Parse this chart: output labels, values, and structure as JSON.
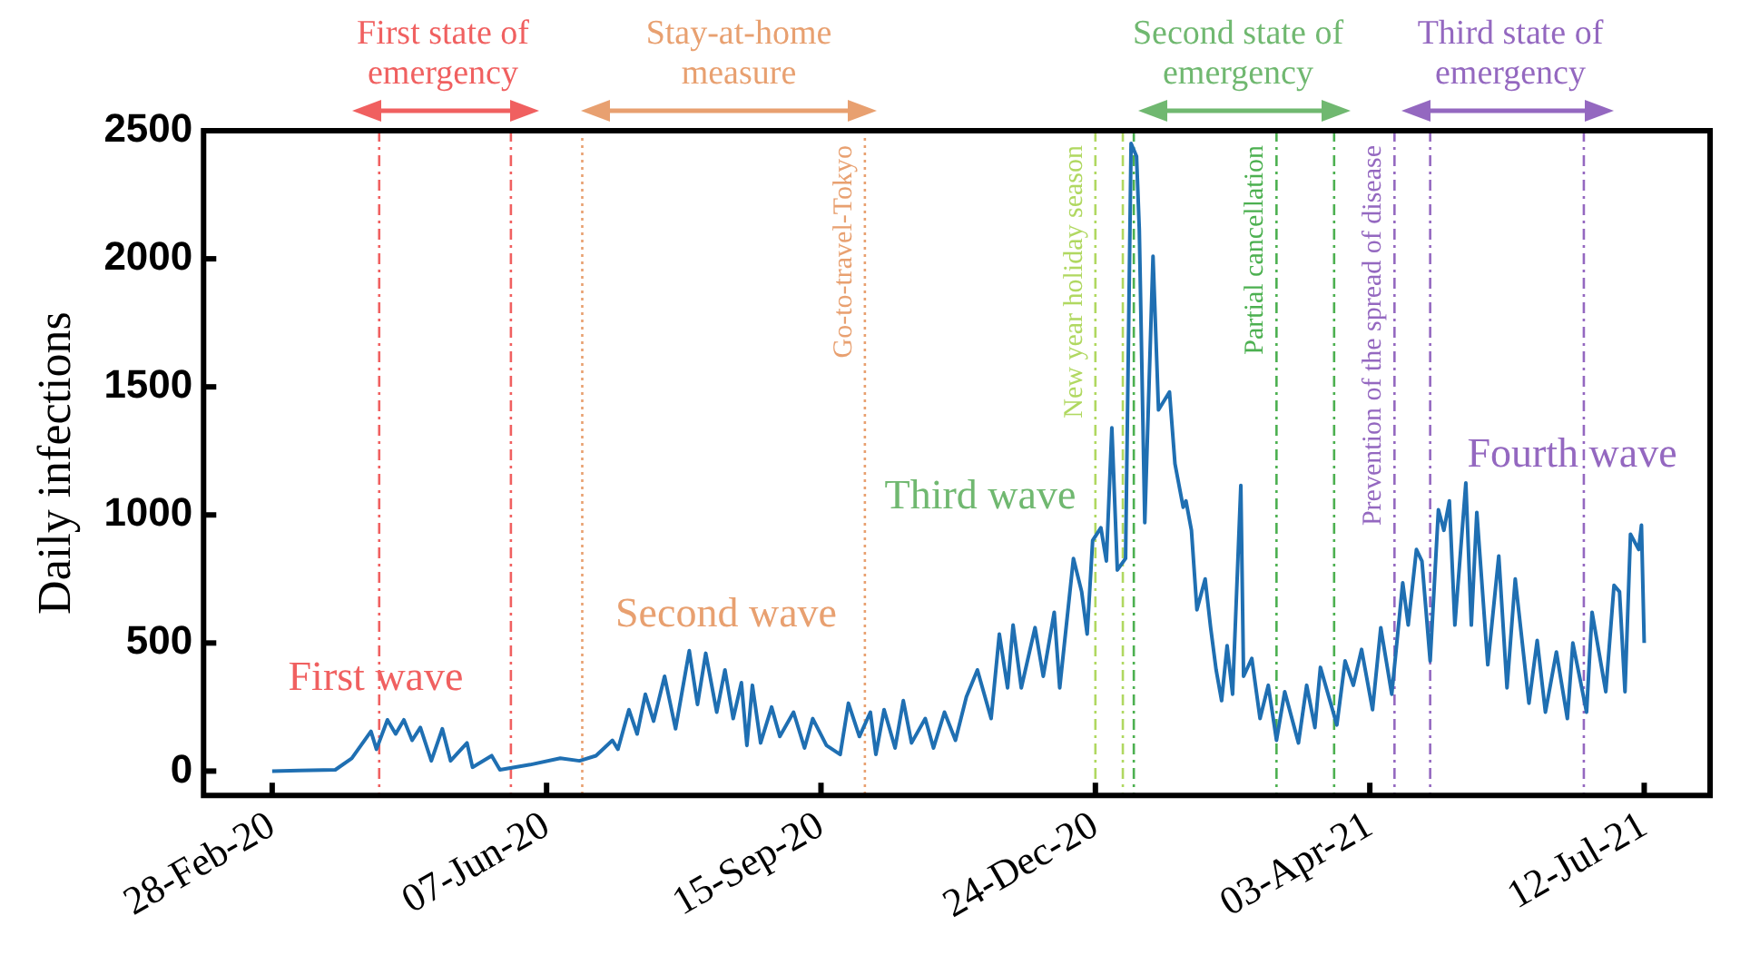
{
  "chart_data": {
    "type": "line",
    "ylabel": "Daily infections",
    "x": [
      "2020-02-28",
      "2020-03-09",
      "2020-03-22",
      "2020-03-28",
      "2020-04-04",
      "2020-04-06",
      "2020-04-10",
      "2020-04-13",
      "2020-04-16",
      "2020-04-19",
      "2020-04-22",
      "2020-04-26",
      "2020-04-30",
      "2020-05-03",
      "2020-05-09",
      "2020-05-11",
      "2020-05-18",
      "2020-05-21",
      "2020-06-01",
      "2020-06-12",
      "2020-06-19",
      "2020-06-25",
      "2020-07-01",
      "2020-07-03",
      "2020-07-07",
      "2020-07-10",
      "2020-07-13",
      "2020-07-16",
      "2020-07-20",
      "2020-07-24",
      "2020-07-29",
      "2020-08-01",
      "2020-08-04",
      "2020-08-08",
      "2020-08-11",
      "2020-08-14",
      "2020-08-17",
      "2020-08-19",
      "2020-08-21",
      "2020-08-24",
      "2020-08-28",
      "2020-08-31",
      "2020-09-05",
      "2020-09-09",
      "2020-09-12",
      "2020-09-17",
      "2020-09-22",
      "2020-09-25",
      "2020-09-29",
      "2020-10-03",
      "2020-10-05",
      "2020-10-08",
      "2020-10-12",
      "2020-10-15",
      "2020-10-18",
      "2020-10-23",
      "2020-10-26",
      "2020-10-30",
      "2020-11-03",
      "2020-11-07",
      "2020-11-11",
      "2020-11-16",
      "2020-11-19",
      "2020-11-22",
      "2020-11-24",
      "2020-11-27",
      "2020-12-02",
      "2020-12-05",
      "2020-12-09",
      "2020-12-11",
      "2020-12-16",
      "2020-12-19",
      "2020-12-21",
      "2020-12-23",
      "2020-12-26",
      "2020-12-28",
      "2020-12-30",
      "2021-01-01",
      "2021-01-04",
      "2021-01-06",
      "2021-01-08",
      "2021-01-09",
      "2021-01-11",
      "2021-01-14",
      "2021-01-16",
      "2021-01-20",
      "2021-01-22",
      "2021-01-25",
      "2021-01-26",
      "2021-01-28",
      "2021-01-30",
      "2021-02-02",
      "2021-02-04",
      "2021-02-06",
      "2021-02-08",
      "2021-02-10",
      "2021-02-12",
      "2021-02-15",
      "2021-02-16",
      "2021-02-19",
      "2021-02-22",
      "2021-02-25",
      "2021-02-28",
      "2021-03-03",
      "2021-03-08",
      "2021-03-11",
      "2021-03-14",
      "2021-03-16",
      "2021-03-22",
      "2021-03-25",
      "2021-03-28",
      "2021-03-31",
      "2021-04-04",
      "2021-04-07",
      "2021-04-11",
      "2021-04-15",
      "2021-04-17",
      "2021-04-20",
      "2021-04-22",
      "2021-04-25",
      "2021-04-28",
      "2021-04-30",
      "2021-05-02",
      "2021-05-04",
      "2021-05-08",
      "2021-05-10",
      "2021-05-12",
      "2021-05-16",
      "2021-05-20",
      "2021-05-23",
      "2021-05-26",
      "2021-05-31",
      "2021-06-03",
      "2021-06-06",
      "2021-06-10",
      "2021-06-14",
      "2021-06-16",
      "2021-06-21",
      "2021-06-23",
      "2021-06-28",
      "2021-07-01",
      "2021-07-03",
      "2021-07-05",
      "2021-07-07",
      "2021-07-10",
      "2021-07-11",
      "2021-07-12"
    ],
    "series": [
      {
        "color": "#1f6fb2",
        "values": [
          0,
          2,
          5,
          50,
          155,
          85,
          200,
          145,
          200,
          120,
          170,
          40,
          165,
          40,
          110,
          15,
          60,
          5,
          25,
          50,
          40,
          60,
          120,
          85,
          240,
          145,
          300,
          195,
          370,
          165,
          470,
          260,
          460,
          230,
          395,
          205,
          345,
          100,
          335,
          110,
          250,
          135,
          230,
          90,
          205,
          100,
          65,
          265,
          135,
          230,
          65,
          240,
          90,
          275,
          110,
          205,
          90,
          230,
          120,
          290,
          395,
          205,
          535,
          325,
          570,
          325,
          560,
          370,
          620,
          325,
          830,
          700,
          535,
          900,
          950,
          820,
          1340,
          785,
          830,
          2450,
          2400,
          2115,
          970,
          2010,
          1410,
          1480,
          1200,
          1030,
          1055,
          940,
          630,
          750,
          560,
          395,
          275,
          490,
          300,
          1115,
          370,
          440,
          205,
          335,
          120,
          310,
          110,
          335,
          170,
          405,
          180,
          430,
          335,
          475,
          240,
          560,
          300,
          735,
          570,
          865,
          820,
          430,
          1020,
          940,
          1055,
          570,
          1125,
          570,
          1010,
          415,
          840,
          325,
          750,
          265,
          510,
          230,
          465,
          205,
          500,
          230,
          620,
          310,
          725,
          700,
          310,
          925,
          865,
          960,
          500
        ]
      }
    ],
    "xlim": [
      "2020-02-03",
      "2021-08-05"
    ],
    "xticks": [
      {
        "value": "2020-02-28",
        "label": "28-Feb-20"
      },
      {
        "value": "2020-06-07",
        "label": "07-Jun-20"
      },
      {
        "value": "2020-09-15",
        "label": "15-Sep-20"
      },
      {
        "value": "2020-12-24",
        "label": "24-Dec-20"
      },
      {
        "value": "2021-04-03",
        "label": "03-Apr-21"
      },
      {
        "value": "2021-07-12",
        "label": "12-Jul-21"
      }
    ],
    "ylim": [
      -95,
      2500
    ],
    "yticks": [
      0,
      500,
      1000,
      1500,
      2000,
      2500
    ],
    "ref_lines": [
      {
        "axis": "x",
        "value": "2020-04-07",
        "label": null,
        "color": "#f06060",
        "line_style": "dashed"
      },
      {
        "axis": "x",
        "value": "2020-05-25",
        "label": null,
        "color": "#f06060",
        "line_style": "dashed"
      },
      {
        "axis": "x",
        "value": "2020-06-20",
        "label": null,
        "color": "#e8a070",
        "line_style": "dotted"
      },
      {
        "axis": "x",
        "value": "2020-10-01",
        "label": "Go-to-travel-Tokyo",
        "color": "#e8a070",
        "line_style": "dotted"
      },
      {
        "axis": "x",
        "value": "2020-12-24",
        "label": "New year holiday season",
        "color": "#b0d860",
        "line_style": "dashed"
      },
      {
        "axis": "x",
        "value": "2021-01-03",
        "label": null,
        "color": "#b0d860",
        "line_style": "dashed"
      },
      {
        "axis": "x",
        "value": "2021-01-07",
        "label": null,
        "color": "#4cb050",
        "line_style": "dashed"
      },
      {
        "axis": "x",
        "value": "2021-02-28",
        "label": "Partial cancellation",
        "color": "#4cb050",
        "line_style": "dashed"
      },
      {
        "axis": "x",
        "value": "2021-03-21",
        "label": null,
        "color": "#4cb050",
        "line_style": "dashed"
      },
      {
        "axis": "x",
        "value": "2021-04-12",
        "label": "Prevention of the spread of disease",
        "color": "#9468c0",
        "line_style": "dashed"
      },
      {
        "axis": "x",
        "value": "2021-04-25",
        "label": null,
        "color": "#9468c0",
        "line_style": "dashed"
      },
      {
        "axis": "x",
        "value": "2021-06-20",
        "label": null,
        "color": "#9468c0",
        "line_style": "dashed"
      }
    ],
    "annotations": [
      "First state of emergency",
      "Stay-at-home measure",
      "Second state of emergency",
      "Third state of emergency",
      "First wave",
      "Second wave",
      "Third wave",
      "Fourth wave"
    ]
  }
}
